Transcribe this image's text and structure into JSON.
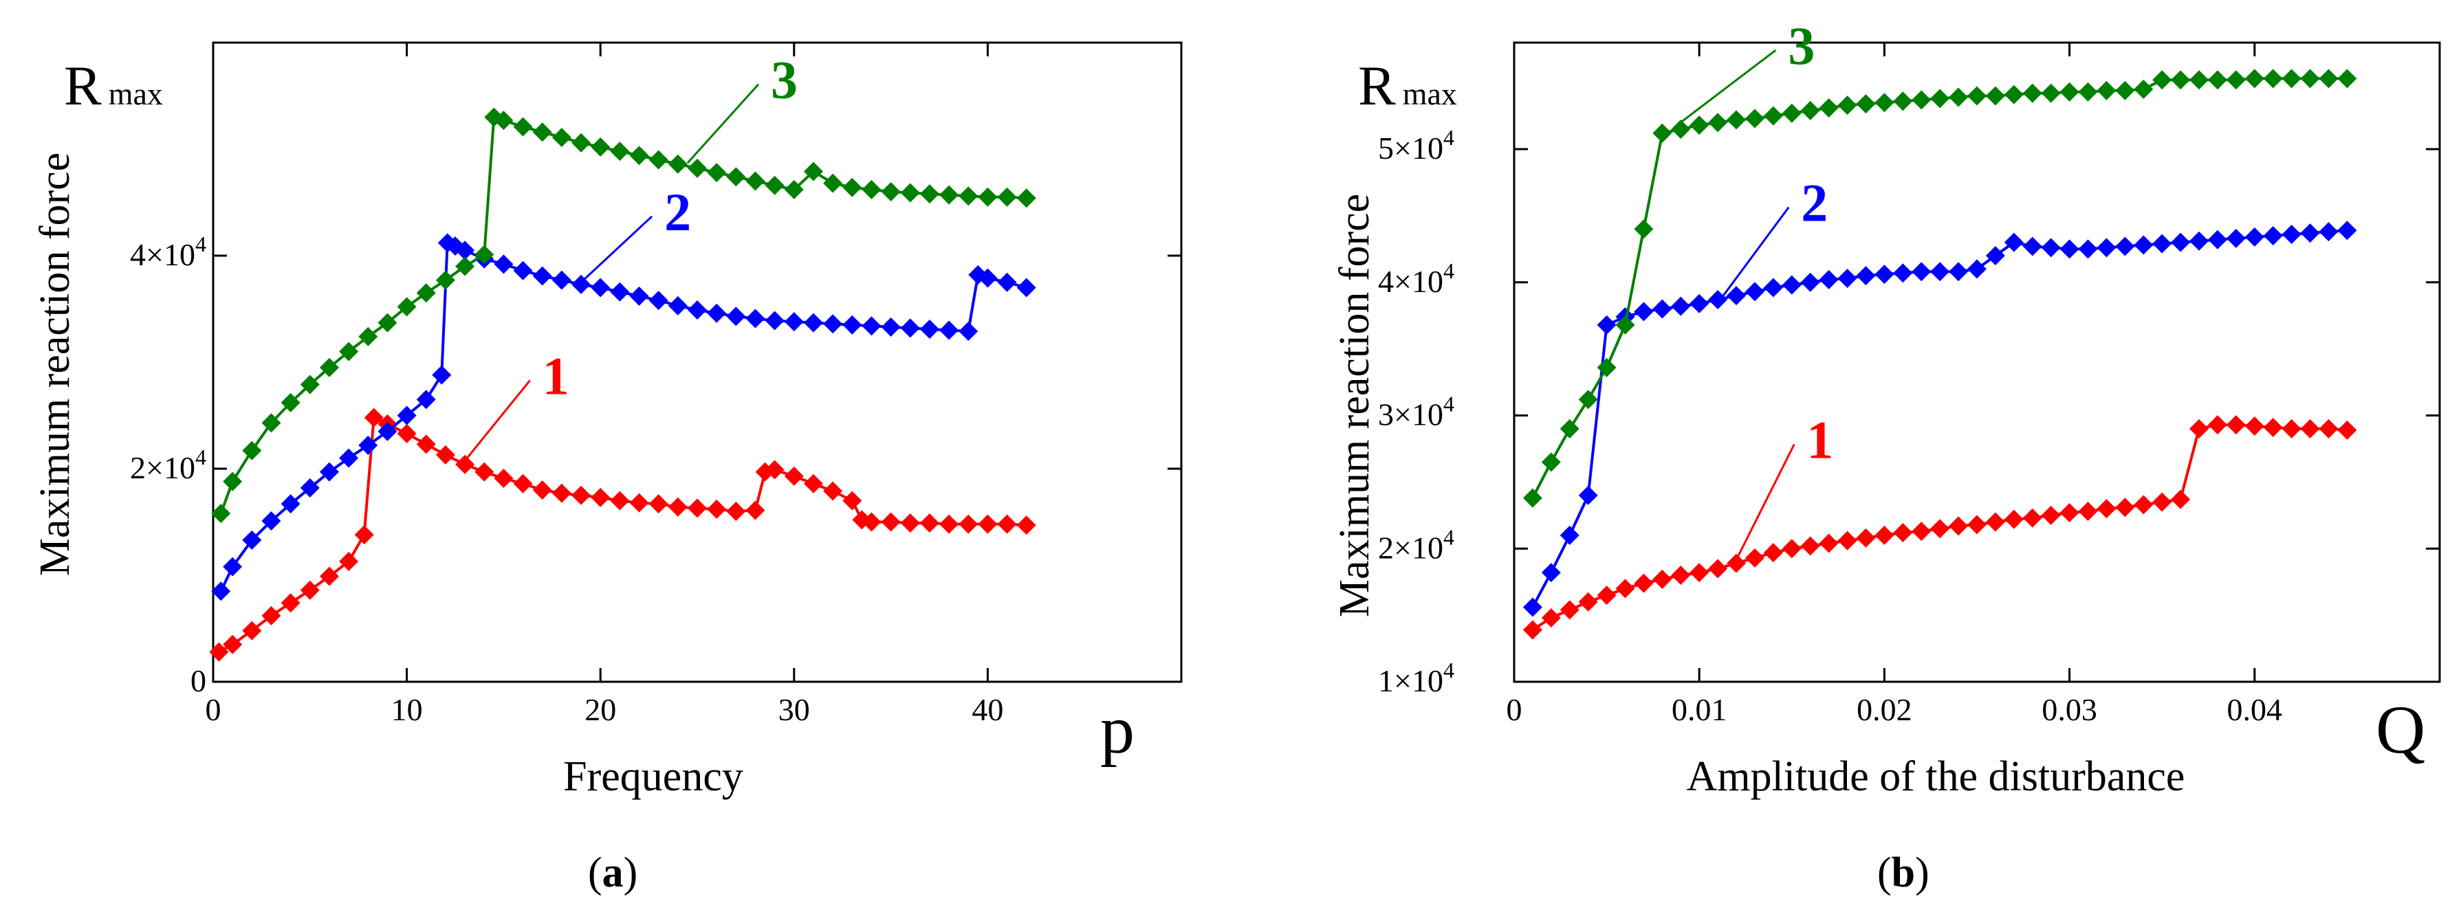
{
  "colors": {
    "s1": "#ff0000",
    "s2": "#0000ff",
    "s3": "#008000",
    "axis": "#000000"
  },
  "chart_data": [
    {
      "type": "line",
      "id": "a",
      "panel_label": {
        "open": "(",
        "letter": "a",
        "close": ")"
      },
      "ylabel_symbol": "R",
      "ylabel_symbol_sub": "max",
      "ylabel": "Maximum reaction force",
      "xlabel": "Frequency",
      "x_axis_symbol": "p",
      "xlim": [
        0,
        50
      ],
      "ylim": [
        0,
        60000
      ],
      "xticks": [
        {
          "v": 0,
          "label": "0"
        },
        {
          "v": 10,
          "label": "10"
        },
        {
          "v": 20,
          "label": "20"
        },
        {
          "v": 30,
          "label": "30"
        },
        {
          "v": 40,
          "label": "40"
        }
      ],
      "yticks": [
        {
          "v": 0,
          "label": "0",
          "exp": ""
        },
        {
          "v": 20000,
          "label": "2×10",
          "exp": "4"
        },
        {
          "v": 40000,
          "label": "4×10",
          "exp": "4"
        }
      ],
      "series": [
        {
          "name": "1",
          "label": "1",
          "color": "#ff0000",
          "label_at": [
            17,
            27000
          ],
          "leader_to": [
            12.8,
            20300
          ],
          "x": [
            0.3,
            1,
            2,
            3,
            4,
            5,
            6,
            7,
            7.8,
            8.3,
            9,
            10,
            11,
            12,
            13,
            14,
            15,
            16,
            17,
            18,
            19,
            20,
            21,
            22,
            23,
            24,
            25,
            26,
            27,
            28,
            28.5,
            29,
            30,
            31,
            32,
            33,
            33.5,
            34,
            35,
            36,
            37,
            38,
            39,
            40,
            41,
            42
          ],
          "y": [
            2800,
            3500,
            4800,
            6200,
            7400,
            8600,
            9900,
            11300,
            13800,
            24800,
            24200,
            23300,
            22300,
            21300,
            20400,
            19700,
            19100,
            18600,
            18000,
            17700,
            17500,
            17300,
            17000,
            16800,
            16700,
            16400,
            16300,
            16200,
            16000,
            16100,
            19700,
            19900,
            19300,
            18600,
            17900,
            17000,
            15200,
            15000,
            15000,
            14900,
            14900,
            14800,
            14800,
            14800,
            14800,
            14700
          ]
        },
        {
          "name": "2",
          "label": "2",
          "color": "#0000ff",
          "label_at": [
            23.3,
            42400
          ],
          "leader_to": [
            19,
            37500
          ],
          "x": [
            0.4,
            1,
            2,
            3,
            4,
            5,
            6,
            7,
            8,
            9,
            10,
            11,
            11.8,
            12.1,
            12.5,
            13,
            14,
            15,
            16,
            17,
            18,
            19,
            20,
            21,
            22,
            23,
            24,
            25,
            26,
            27,
            28,
            29,
            30,
            31,
            32,
            33,
            34,
            35,
            36,
            37,
            38,
            39,
            39.5,
            40,
            41,
            42
          ],
          "y": [
            8500,
            10800,
            13300,
            15100,
            16700,
            18200,
            19700,
            21000,
            22200,
            23500,
            25000,
            26500,
            28800,
            41200,
            40900,
            40500,
            39700,
            39200,
            38600,
            38100,
            37700,
            37300,
            37000,
            36600,
            36200,
            35800,
            35300,
            34900,
            34600,
            34300,
            34100,
            33900,
            33800,
            33700,
            33600,
            33500,
            33400,
            33300,
            33200,
            33100,
            33000,
            32900,
            38200,
            37900,
            37500,
            37000
          ]
        },
        {
          "name": "3",
          "label": "3",
          "color": "#008000",
          "label_at": [
            28.8,
            54800
          ],
          "leader_to": [
            24.5,
            48700
          ],
          "x": [
            0.4,
            1,
            2,
            3,
            4,
            5,
            6,
            7,
            8,
            9,
            10,
            11,
            12,
            13,
            14,
            14.5,
            15,
            16,
            17,
            18,
            19,
            20,
            21,
            22,
            23,
            24,
            25,
            26,
            27,
            28,
            29,
            30,
            31,
            32,
            33,
            34,
            35,
            36,
            37,
            38,
            39,
            40,
            41,
            42
          ],
          "y": [
            15800,
            18800,
            21700,
            24300,
            26200,
            27900,
            29500,
            31000,
            32400,
            33700,
            35200,
            36500,
            37700,
            39000,
            40100,
            53000,
            52700,
            52100,
            51600,
            51100,
            50600,
            50200,
            49800,
            49400,
            49000,
            48600,
            48200,
            47800,
            47400,
            47000,
            46600,
            46200,
            47900,
            46800,
            46400,
            46200,
            46000,
            45900,
            45800,
            45700,
            45600,
            45500,
            45500,
            45400
          ]
        }
      ]
    },
    {
      "type": "line",
      "id": "b",
      "panel_label": {
        "open": "(",
        "letter": "b",
        "close": ")"
      },
      "ylabel_symbol": "R",
      "ylabel_symbol_sub": "max",
      "ylabel": "Maximum reaction force",
      "xlabel": "Amplitude  of the disturbance",
      "x_axis_symbol": "Q",
      "xlim": [
        0,
        0.05
      ],
      "ylim": [
        10000,
        58000
      ],
      "xticks": [
        {
          "v": 0,
          "label": "0"
        },
        {
          "v": 0.01,
          "label": "0.01"
        },
        {
          "v": 0.02,
          "label": "0.02"
        },
        {
          "v": 0.03,
          "label": "0.03"
        },
        {
          "v": 0.04,
          "label": "0.04"
        }
      ],
      "yticks": [
        {
          "v": 10000,
          "label": "1×10",
          "exp": "4"
        },
        {
          "v": 20000,
          "label": "2×10",
          "exp": "4"
        },
        {
          "v": 30000,
          "label": "3×10",
          "exp": "4"
        },
        {
          "v": 40000,
          "label": "4×10",
          "exp": "4"
        },
        {
          "v": 50000,
          "label": "5×10",
          "exp": "4"
        }
      ],
      "series": [
        {
          "name": "1",
          "label": "1",
          "color": "#ff0000",
          "label_at": [
            0.0158,
            26800
          ],
          "leader_to": [
            0.0118,
            18600
          ],
          "x": [
            0.001,
            0.002,
            0.003,
            0.004,
            0.005,
            0.006,
            0.007,
            0.008,
            0.009,
            0.01,
            0.011,
            0.012,
            0.013,
            0.014,
            0.015,
            0.016,
            0.017,
            0.018,
            0.019,
            0.02,
            0.021,
            0.022,
            0.023,
            0.024,
            0.025,
            0.026,
            0.027,
            0.028,
            0.029,
            0.03,
            0.031,
            0.032,
            0.033,
            0.034,
            0.035,
            0.036,
            0.037,
            0.038,
            0.039,
            0.04,
            0.041,
            0.042,
            0.043,
            0.044,
            0.045
          ],
          "y": [
            13900,
            14800,
            15400,
            16000,
            16500,
            17000,
            17400,
            17700,
            18000,
            18200,
            18500,
            18900,
            19300,
            19700,
            20000,
            20200,
            20400,
            20600,
            20800,
            21000,
            21200,
            21300,
            21500,
            21700,
            21800,
            22000,
            22200,
            22300,
            22500,
            22700,
            22800,
            23000,
            23100,
            23300,
            23500,
            23700,
            29000,
            29300,
            29300,
            29200,
            29100,
            29000,
            29000,
            29000,
            28900
          ]
        },
        {
          "name": "2",
          "label": "2",
          "color": "#0000ff",
          "label_at": [
            0.0155,
            44600
          ],
          "leader_to": [
            0.0113,
            39000
          ],
          "x": [
            0.001,
            0.002,
            0.003,
            0.004,
            0.005,
            0.006,
            0.007,
            0.008,
            0.009,
            0.01,
            0.011,
            0.012,
            0.013,
            0.014,
            0.015,
            0.016,
            0.017,
            0.018,
            0.019,
            0.02,
            0.021,
            0.022,
            0.023,
            0.024,
            0.025,
            0.026,
            0.027,
            0.028,
            0.029,
            0.03,
            0.031,
            0.032,
            0.033,
            0.034,
            0.035,
            0.036,
            0.037,
            0.038,
            0.039,
            0.04,
            0.041,
            0.042,
            0.043,
            0.044,
            0.045
          ],
          "y": [
            15600,
            18200,
            21000,
            24000,
            36800,
            37400,
            37800,
            38000,
            38200,
            38400,
            38700,
            39000,
            39300,
            39600,
            39800,
            40000,
            40200,
            40300,
            40500,
            40600,
            40700,
            40800,
            40800,
            40800,
            41000,
            42000,
            43000,
            42700,
            42600,
            42500,
            42500,
            42600,
            42700,
            42800,
            42900,
            43000,
            43100,
            43200,
            43300,
            43400,
            43500,
            43600,
            43700,
            43800,
            43900
          ]
        },
        {
          "name": "3",
          "label": "3",
          "color": "#008000",
          "label_at": [
            0.0148,
            56400
          ],
          "leader_to": [
            0.0088,
            51800
          ],
          "x": [
            0.001,
            0.002,
            0.003,
            0.004,
            0.005,
            0.006,
            0.007,
            0.008,
            0.009,
            0.01,
            0.011,
            0.012,
            0.013,
            0.014,
            0.015,
            0.016,
            0.017,
            0.018,
            0.019,
            0.02,
            0.021,
            0.022,
            0.023,
            0.024,
            0.025,
            0.026,
            0.027,
            0.028,
            0.029,
            0.03,
            0.031,
            0.032,
            0.033,
            0.034,
            0.035,
            0.036,
            0.037,
            0.038,
            0.039,
            0.04,
            0.041,
            0.042,
            0.043,
            0.044,
            0.045
          ],
          "y": [
            23800,
            26500,
            29000,
            31200,
            33600,
            36800,
            44000,
            51200,
            51500,
            51800,
            52000,
            52200,
            52300,
            52500,
            52700,
            52900,
            53100,
            53300,
            53400,
            53500,
            53600,
            53700,
            53800,
            53900,
            54000,
            54000,
            54100,
            54200,
            54200,
            54300,
            54300,
            54400,
            54400,
            54500,
            55200,
            55200,
            55200,
            55200,
            55200,
            55300,
            55300,
            55300,
            55300,
            55300,
            55300
          ]
        }
      ]
    }
  ]
}
